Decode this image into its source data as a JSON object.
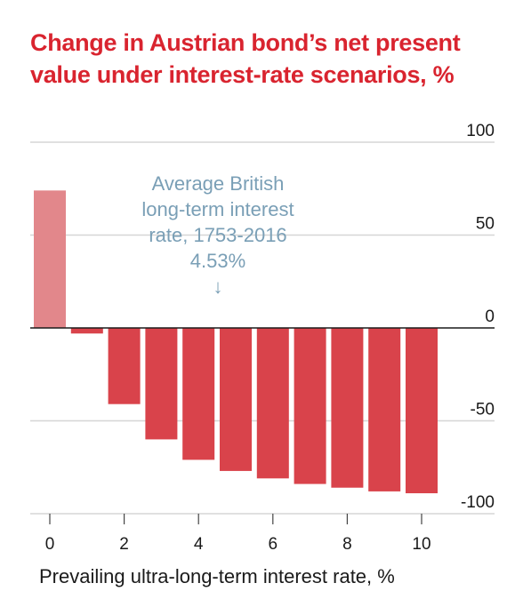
{
  "title_lines": [
    "Change in Austrian bond’s net present",
    "value under interest-rate scenarios, %"
  ],
  "annotation": {
    "lines": [
      "Average British",
      "long-term interest",
      "rate, 1753-2016",
      "4.53%"
    ],
    "arrow": "↓"
  },
  "chart_data": {
    "type": "bar",
    "title": "Change in Austrian bond’s net present value under interest-rate scenarios, %",
    "xlabel": "Prevailing ultra-long-term interest rate, %",
    "ylabel": "",
    "x": [
      0,
      1,
      2,
      3,
      4,
      5,
      6,
      7,
      8,
      9,
      10
    ],
    "values": [
      74,
      -3,
      -41,
      -60,
      -71,
      -77,
      -81,
      -84,
      -86,
      -88,
      -89
    ],
    "highlight_index": 0,
    "ylim": [
      -100,
      100
    ],
    "yticks": [
      100,
      50,
      0,
      -50,
      -100
    ],
    "ytick_labels": [
      "100",
      "50",
      "0",
      "-50",
      "-100"
    ],
    "xticks": [
      0,
      2,
      4,
      6,
      8,
      10
    ],
    "xtick_labels": [
      "0",
      "2",
      "4",
      "6",
      "8",
      "10"
    ],
    "grid": true,
    "colors": {
      "bar": "#d9434b",
      "highlight": "#e2878b",
      "grid": "#d6d6d6",
      "zero": "#1a1a1a"
    }
  }
}
